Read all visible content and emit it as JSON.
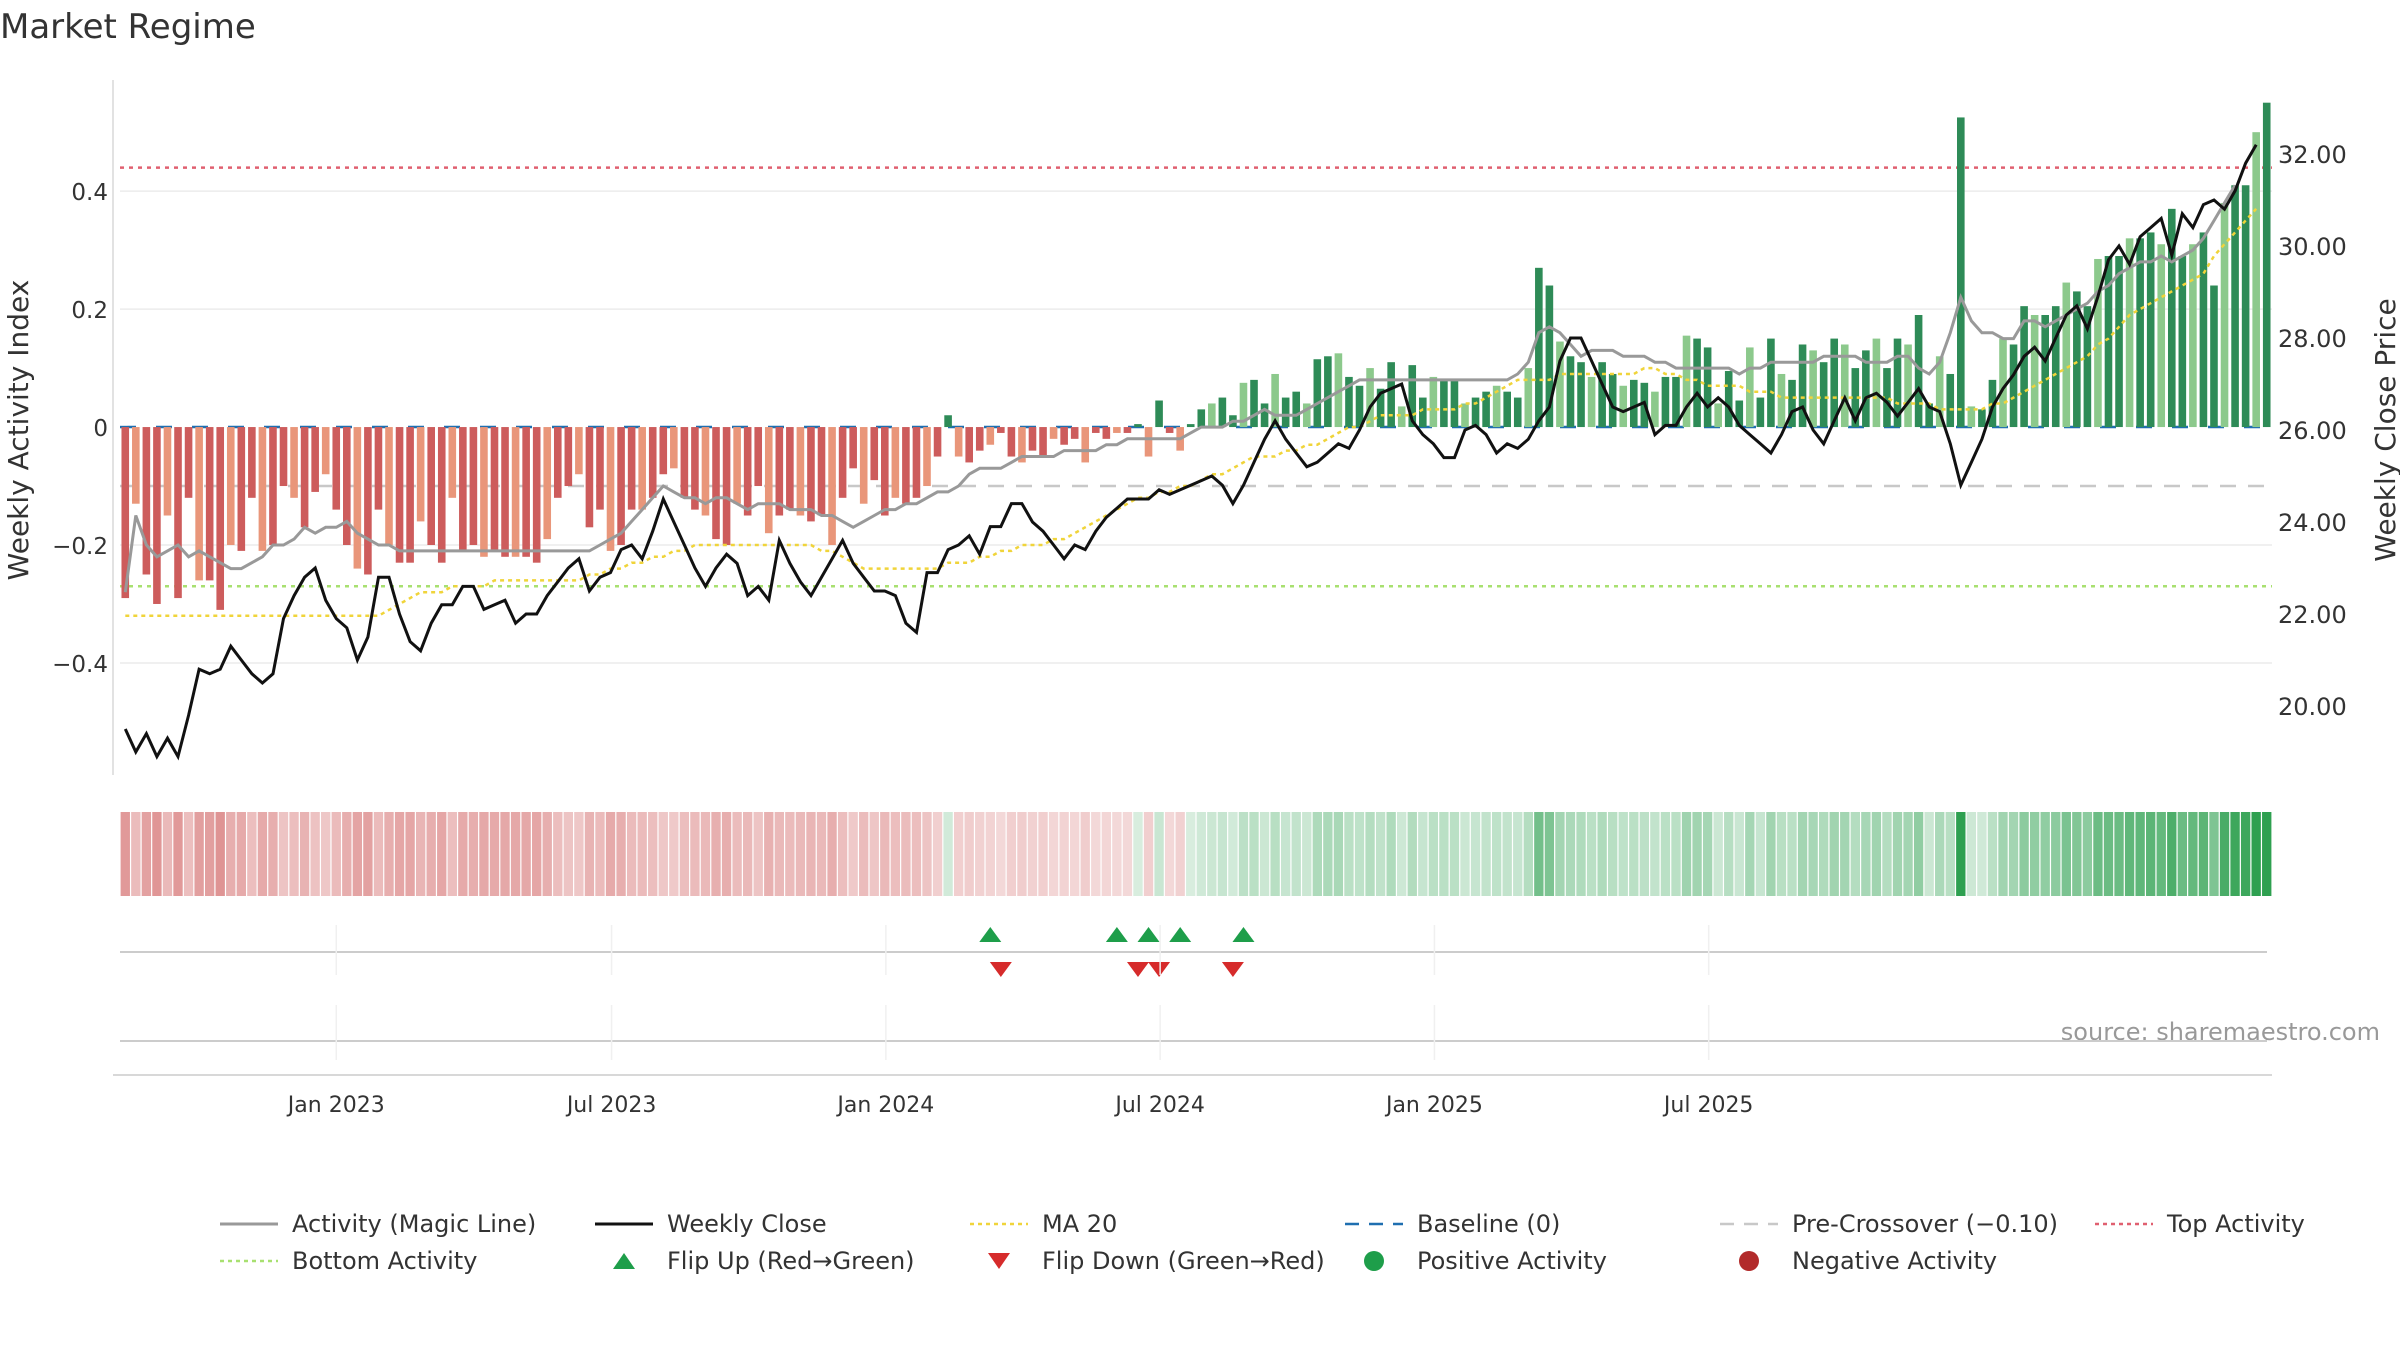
{
  "chart_data": {
    "type": "bar",
    "title": "Market Regime",
    "ylabel": "Weekly Activity Index",
    "y2label": "Weekly Close Price",
    "source": "source: sharemaestro.com",
    "x_tick_labels": [
      "Jan 2023",
      "Jul 2023",
      "Jan 2024",
      "Jul 2024",
      "Jan 2025",
      "Jul 2025"
    ],
    "y_ticks": [
      -0.4,
      -0.2,
      0,
      0.2,
      0.4
    ],
    "y_tick_labels": [
      "−0.4",
      "−0.2",
      "0",
      "0.2",
      "0.4"
    ],
    "y2_ticks": [
      20,
      22,
      24,
      26,
      28,
      30,
      32
    ],
    "y2_tick_labels": [
      "20.00",
      "22.00",
      "24.00",
      "26.00",
      "28.00",
      "30.00",
      "32.00"
    ],
    "ylim": [
      -0.59,
      0.58
    ],
    "y2lim": [
      18.5,
      33.5
    ],
    "reference_lines": {
      "top_activity": 0.44,
      "bottom_activity": -0.27,
      "pre_crossover": -0.1,
      "baseline": 0
    },
    "grid": true,
    "legend_position": "bottom",
    "colors": {
      "positive_strong": "#2e8b57",
      "positive_light": "#8cc98c",
      "negative_strong": "#cd5c5c",
      "negative_light": "#e9967a",
      "close": "#111111",
      "magic": "#999999",
      "ma20": "#f0d43a",
      "baseline": "#1f6fb0",
      "top": "#e06070",
      "bottom": "#a8e070",
      "flip_up": "#1e9e4a",
      "flip_down": "#d62b2b"
    },
    "series": [
      {
        "name": "Activity (Magic Line)",
        "values": [
          -0.28,
          -0.15,
          -0.2,
          -0.22,
          -0.21,
          -0.2,
          -0.22,
          -0.21,
          -0.22,
          -0.23,
          -0.24,
          -0.24,
          -0.23,
          -0.22,
          -0.2,
          -0.2,
          -0.19,
          -0.17,
          -0.18,
          -0.17,
          -0.17,
          -0.16,
          -0.18,
          -0.19,
          -0.2,
          -0.2,
          -0.21,
          -0.21,
          -0.21,
          -0.21,
          -0.21,
          -0.21,
          -0.21,
          -0.21,
          -0.21,
          -0.21,
          -0.21,
          -0.21,
          -0.21,
          -0.21,
          -0.21,
          -0.21,
          -0.21,
          -0.21,
          -0.21,
          -0.2,
          -0.19,
          -0.18,
          -0.16,
          -0.14,
          -0.12,
          -0.1,
          -0.11,
          -0.12,
          -0.12,
          -0.13,
          -0.12,
          -0.12,
          -0.13,
          -0.14,
          -0.13,
          -0.13,
          -0.13,
          -0.14,
          -0.14,
          -0.14,
          -0.15,
          -0.15,
          -0.16,
          -0.17,
          -0.16,
          -0.15,
          -0.14,
          -0.14,
          -0.13,
          -0.13,
          -0.12,
          -0.11,
          -0.11,
          -0.1,
          -0.08,
          -0.07,
          -0.07,
          -0.07,
          -0.06,
          -0.05,
          -0.05,
          -0.05,
          -0.05,
          -0.04,
          -0.04,
          -0.04,
          -0.04,
          -0.03,
          -0.03,
          -0.02,
          -0.02,
          -0.02,
          -0.02,
          -0.02,
          -0.02,
          -0.01,
          0.0,
          0.0,
          0.0,
          0.01,
          0.01,
          0.02,
          0.03,
          0.02,
          0.02,
          0.02,
          0.03,
          0.04,
          0.05,
          0.06,
          0.07,
          0.08,
          0.08,
          0.08,
          0.08,
          0.08,
          0.08,
          0.08,
          0.08,
          0.08,
          0.08,
          0.08,
          0.08,
          0.08,
          0.08,
          0.08,
          0.09,
          0.11,
          0.16,
          0.17,
          0.16,
          0.14,
          0.12,
          0.13,
          0.13,
          0.13,
          0.12,
          0.12,
          0.12,
          0.11,
          0.11,
          0.1,
          0.1,
          0.1,
          0.1,
          0.1,
          0.1,
          0.09,
          0.1,
          0.1,
          0.11,
          0.11,
          0.11,
          0.11,
          0.11,
          0.12,
          0.12,
          0.12,
          0.12,
          0.11,
          0.11,
          0.11,
          0.12,
          0.12,
          0.1,
          0.09,
          0.11,
          0.16,
          0.22,
          0.18,
          0.16,
          0.16,
          0.15,
          0.15,
          0.18,
          0.18,
          0.17,
          0.18,
          0.19,
          0.2,
          0.21,
          0.23,
          0.24,
          0.26,
          0.27,
          0.28,
          0.28,
          0.29,
          0.28,
          0.29,
          0.3,
          0.32,
          0.35,
          0.38,
          0.41
        ]
      },
      {
        "name": "Weekly Close",
        "values": [
          19.5,
          19.0,
          19.4,
          18.9,
          19.3,
          18.9,
          19.8,
          20.8,
          20.7,
          20.8,
          21.3,
          21.0,
          20.7,
          20.5,
          20.7,
          21.9,
          22.4,
          22.8,
          23.0,
          22.3,
          21.9,
          21.7,
          21.0,
          21.5,
          22.8,
          22.8,
          22.0,
          21.4,
          21.2,
          21.8,
          22.2,
          22.2,
          22.6,
          22.6,
          22.1,
          22.2,
          22.3,
          21.8,
          22.0,
          22.0,
          22.4,
          22.7,
          23.0,
          23.2,
          22.5,
          22.8,
          22.9,
          23.4,
          23.5,
          23.2,
          23.8,
          24.5,
          24.0,
          23.5,
          23.0,
          22.6,
          23.0,
          23.3,
          23.1,
          22.4,
          22.6,
          22.3,
          23.6,
          23.1,
          22.7,
          22.4,
          22.8,
          23.2,
          23.6,
          23.1,
          22.8,
          22.5,
          22.5,
          22.4,
          21.8,
          21.6,
          22.9,
          22.9,
          23.4,
          23.5,
          23.7,
          23.3,
          23.9,
          23.9,
          24.4,
          24.4,
          24.0,
          23.8,
          23.5,
          23.2,
          23.5,
          23.4,
          23.8,
          24.1,
          24.3,
          24.5,
          24.5,
          24.5,
          24.7,
          24.6,
          24.7,
          24.8,
          24.9,
          25.0,
          24.8,
          24.4,
          24.8,
          25.3,
          25.8,
          26.2,
          25.8,
          25.5,
          25.2,
          25.3,
          25.5,
          25.7,
          25.6,
          26.0,
          26.5,
          26.8,
          26.9,
          27.0,
          26.2,
          25.9,
          25.7,
          25.4,
          25.4,
          26.0,
          26.1,
          25.9,
          25.5,
          25.7,
          25.6,
          25.8,
          26.2,
          26.5,
          27.5,
          28.0,
          28.0,
          27.5,
          27.0,
          26.5,
          26.4,
          26.5,
          26.6,
          25.9,
          26.1,
          26.1,
          26.5,
          26.8,
          26.5,
          26.7,
          26.5,
          26.1,
          25.9,
          25.7,
          25.5,
          25.9,
          26.4,
          26.5,
          26.0,
          25.7,
          26.2,
          26.7,
          26.2,
          26.7,
          26.8,
          26.6,
          26.3,
          26.6,
          26.9,
          26.5,
          26.4,
          25.7,
          24.8,
          25.3,
          25.8,
          26.5,
          26.9,
          27.2,
          27.6,
          27.8,
          27.5,
          28.0,
          28.5,
          28.7,
          28.2,
          28.9,
          29.7,
          30.0,
          29.6,
          30.2,
          30.4,
          30.6,
          29.8,
          30.7,
          30.4,
          30.9,
          31.0,
          30.8,
          31.2,
          31.8,
          32.2
        ]
      },
      {
        "name": "MA 20",
        "values": [
          -0.32,
          -0.32,
          -0.32,
          -0.32,
          -0.32,
          -0.32,
          -0.32,
          -0.32,
          -0.32,
          -0.32,
          -0.32,
          -0.32,
          -0.32,
          -0.32,
          -0.32,
          -0.32,
          -0.32,
          -0.32,
          -0.32,
          -0.32,
          -0.32,
          -0.32,
          -0.32,
          -0.32,
          -0.32,
          -0.31,
          -0.3,
          -0.29,
          -0.28,
          -0.28,
          -0.28,
          -0.27,
          -0.27,
          -0.27,
          -0.27,
          -0.26,
          -0.26,
          -0.26,
          -0.26,
          -0.26,
          -0.26,
          -0.26,
          -0.26,
          -0.26,
          -0.25,
          -0.25,
          -0.24,
          -0.24,
          -0.23,
          -0.23,
          -0.22,
          -0.22,
          -0.21,
          -0.21,
          -0.2,
          -0.2,
          -0.2,
          -0.2,
          -0.2,
          -0.2,
          -0.2,
          -0.2,
          -0.2,
          -0.2,
          -0.2,
          -0.2,
          -0.21,
          -0.21,
          -0.22,
          -0.23,
          -0.24,
          -0.24,
          -0.24,
          -0.24,
          -0.24,
          -0.24,
          -0.24,
          -0.24,
          -0.23,
          -0.23,
          -0.23,
          -0.22,
          -0.22,
          -0.21,
          -0.21,
          -0.2,
          -0.2,
          -0.2,
          -0.19,
          -0.19,
          -0.18,
          -0.17,
          -0.16,
          -0.15,
          -0.14,
          -0.13,
          -0.12,
          -0.12,
          -0.11,
          -0.11,
          -0.1,
          -0.1,
          -0.09,
          -0.08,
          -0.08,
          -0.07,
          -0.06,
          -0.05,
          -0.05,
          -0.05,
          -0.04,
          -0.04,
          -0.03,
          -0.03,
          -0.02,
          -0.01,
          0.0,
          0.0,
          0.01,
          0.02,
          0.02,
          0.02,
          0.02,
          0.03,
          0.03,
          0.03,
          0.03,
          0.04,
          0.04,
          0.05,
          0.06,
          0.07,
          0.08,
          0.08,
          0.08,
          0.08,
          0.09,
          0.09,
          0.09,
          0.09,
          0.09,
          0.09,
          0.09,
          0.09,
          0.1,
          0.1,
          0.09,
          0.09,
          0.08,
          0.08,
          0.07,
          0.07,
          0.07,
          0.07,
          0.06,
          0.06,
          0.06,
          0.05,
          0.05,
          0.05,
          0.05,
          0.05,
          0.05,
          0.05,
          0.05,
          0.05,
          0.05,
          0.05,
          0.04,
          0.04,
          0.04,
          0.04,
          0.03,
          0.03,
          0.03,
          0.03,
          0.03,
          0.04,
          0.04,
          0.05,
          0.06,
          0.07,
          0.08,
          0.09,
          0.1,
          0.11,
          0.12,
          0.14,
          0.15,
          0.17,
          0.19,
          0.2,
          0.21,
          0.22,
          0.23,
          0.24,
          0.25,
          0.26,
          0.29,
          0.31,
          0.33,
          0.35,
          0.37
        ]
      },
      {
        "name": "Weekly Activity Index",
        "values": [
          -0.29,
          -0.13,
          -0.25,
          -0.3,
          -0.15,
          -0.29,
          -0.12,
          -0.26,
          -0.26,
          -0.31,
          -0.2,
          -0.21,
          -0.12,
          -0.21,
          -0.2,
          -0.1,
          -0.12,
          -0.17,
          -0.11,
          -0.08,
          -0.14,
          -0.2,
          -0.24,
          -0.25,
          -0.14,
          -0.2,
          -0.23,
          -0.23,
          -0.16,
          -0.2,
          -0.23,
          -0.12,
          -0.21,
          -0.2,
          -0.22,
          -0.21,
          -0.22,
          -0.22,
          -0.22,
          -0.23,
          -0.19,
          -0.12,
          -0.1,
          -0.08,
          -0.17,
          -0.14,
          -0.21,
          -0.2,
          -0.14,
          -0.14,
          -0.12,
          -0.08,
          -0.07,
          -0.12,
          -0.14,
          -0.15,
          -0.19,
          -0.2,
          -0.13,
          -0.15,
          -0.1,
          -0.18,
          -0.15,
          -0.14,
          -0.15,
          -0.16,
          -0.15,
          -0.2,
          -0.12,
          -0.07,
          -0.13,
          -0.09,
          -0.15,
          -0.12,
          -0.13,
          -0.12,
          -0.1,
          -0.05,
          0.02,
          -0.05,
          -0.06,
          -0.04,
          -0.03,
          -0.01,
          -0.05,
          -0.06,
          -0.04,
          -0.05,
          -0.02,
          -0.03,
          -0.02,
          -0.06,
          -0.01,
          -0.02,
          -0.01,
          -0.01,
          0.005,
          -0.05,
          0.045,
          -0.01,
          -0.04,
          0.005,
          0.03,
          0.04,
          0.05,
          0.02,
          0.075,
          0.08,
          0.04,
          0.09,
          0.05,
          0.06,
          0.04,
          0.115,
          0.12,
          0.125,
          0.085,
          0.07,
          0.1,
          0.065,
          0.11,
          0.035,
          0.105,
          0.05,
          0.085,
          0.08,
          0.08,
          0.04,
          0.05,
          0.06,
          0.07,
          0.06,
          0.05,
          0.1,
          0.27,
          0.24,
          0.145,
          0.12,
          0.11,
          0.085,
          0.11,
          0.09,
          0.07,
          0.08,
          0.075,
          0.06,
          0.085,
          0.085,
          0.155,
          0.15,
          0.135,
          0.04,
          0.095,
          0.045,
          0.135,
          0.05,
          0.15,
          0.09,
          0.08,
          0.14,
          0.13,
          0.11,
          0.15,
          0.14,
          0.1,
          0.13,
          0.15,
          0.1,
          0.15,
          0.14,
          0.19,
          0.04,
          0.12,
          0.09,
          0.525,
          0.035,
          0.03,
          0.08,
          0.15,
          0.14,
          0.205,
          0.19,
          0.19,
          0.205,
          0.245,
          0.23,
          0.205,
          0.285,
          0.29,
          0.29,
          0.32,
          0.32,
          0.33,
          0.31,
          0.37,
          0.29,
          0.31,
          0.33,
          0.24,
          0.38,
          0.41,
          0.41,
          0.5,
          0.55
        ]
      }
    ],
    "regime_strip": "Weekly activity color band (red = negative, green = positive)",
    "flip_up_weeks": [
      82,
      94,
      97,
      100,
      106
    ],
    "flip_down_weeks": [
      83,
      96,
      98,
      105
    ]
  },
  "legend": [
    {
      "label": "Activity (Magic Line)",
      "style": "line",
      "color": "#999999"
    },
    {
      "label": "Weekly Close",
      "style": "line",
      "color": "#111111"
    },
    {
      "label": "MA 20",
      "style": "dotted",
      "color": "#f0d43a"
    },
    {
      "label": "Baseline (0)",
      "style": "dashed",
      "color": "#1f6fb0"
    },
    {
      "label": "Pre-Crossover (−0.10)",
      "style": "dashed",
      "color": "#c8c8c8"
    },
    {
      "label": "Top Activity",
      "style": "dotted",
      "color": "#e06070"
    },
    {
      "label": "Bottom Activity",
      "style": "dotted",
      "color": "#a8e070"
    },
    {
      "label": "Flip Up (Red→Green)",
      "style": "triangle-up",
      "color": "#1e9e4a"
    },
    {
      "label": "Flip Down (Green→Red)",
      "style": "triangle-down",
      "color": "#d62b2b"
    },
    {
      "label": "Positive Activity",
      "style": "dot",
      "color": "#1e9e4a"
    },
    {
      "label": "Negative Activity",
      "style": "dot",
      "color": "#b22a2a"
    }
  ]
}
